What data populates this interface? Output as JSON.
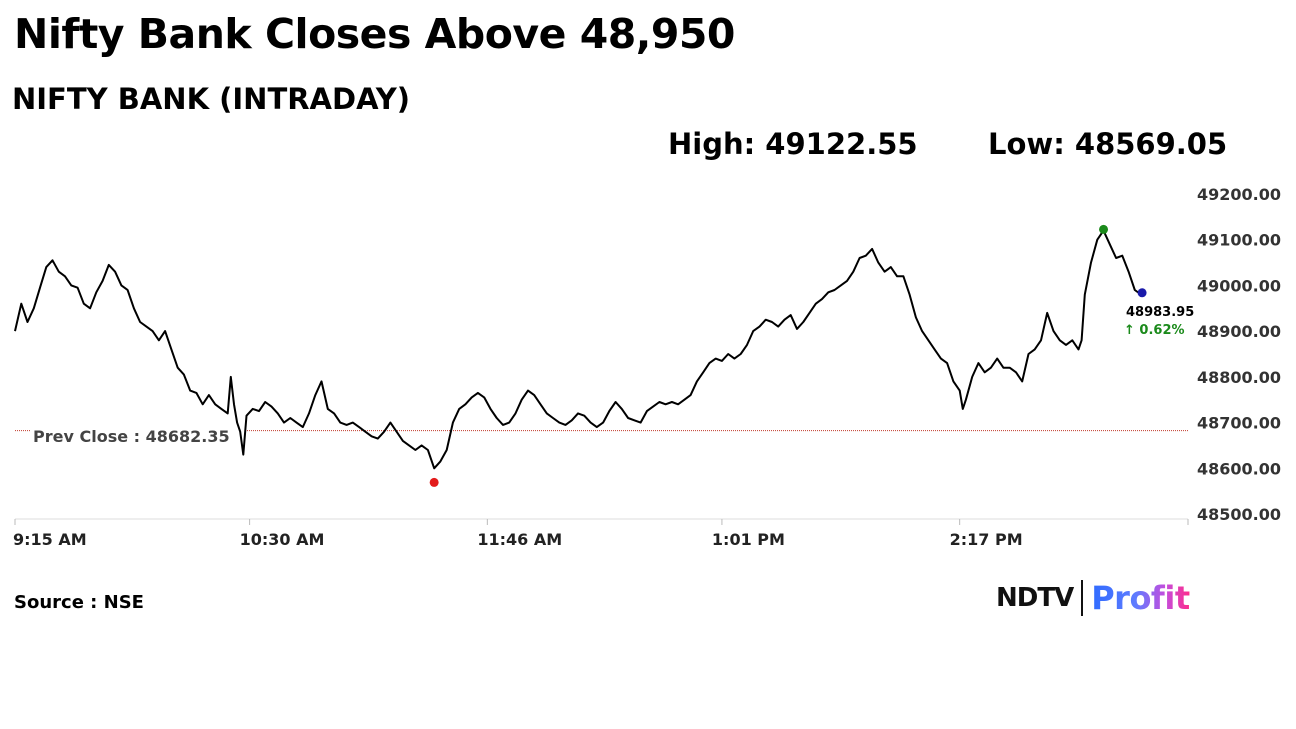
{
  "headline": "Nifty Bank Closes Above 48,950",
  "subtitle": "NIFTY BANK (INTRADAY)",
  "stats": {
    "high": "High: 49122.55",
    "low": "Low: 48569.05"
  },
  "source": "Source : NSE",
  "brand": {
    "left": "NDTV",
    "right": "Profit"
  },
  "chart_data": {
    "type": "line",
    "ylim": [
      48500,
      49200
    ],
    "y_ticks": [
      48500,
      48600,
      48700,
      48800,
      48900,
      49000,
      49100,
      49200
    ],
    "y_tick_labels": [
      "48500.00",
      "48600.00",
      "48700.00",
      "48800.00",
      "48900.00",
      "49000.00",
      "49100.00",
      "49200.00"
    ],
    "x_tick_labels": [
      "9:15 AM",
      "10:30 AM",
      "11:46 AM",
      "1:01 PM",
      "2:17 PM"
    ],
    "x_tick_minutes": [
      555,
      630,
      706,
      781,
      857
    ],
    "x_range_minutes": [
      555,
      930
    ],
    "prev_close": {
      "value": 48682.35,
      "label": "Prev Close : 48682.35"
    },
    "last": {
      "value": 48983.95,
      "label": "48983.95",
      "change_label": "↑ 0.62%"
    },
    "high_point": {
      "minute": 903,
      "value": 49122.55
    },
    "low_point": {
      "minute": 689,
      "value": 48569.05
    },
    "colors": {
      "line": "#000000",
      "prev_close": "#c0392b",
      "high_marker": "#1b8a1b",
      "low_marker": "#e31b1b",
      "last_marker": "#1a1aaa",
      "change": "#1b8a1b"
    },
    "points": [
      [
        555,
        48900
      ],
      [
        557,
        48960
      ],
      [
        559,
        48920
      ],
      [
        561,
        48950
      ],
      [
        563,
        48995
      ],
      [
        565,
        49040
      ],
      [
        567,
        49055
      ],
      [
        569,
        49030
      ],
      [
        571,
        49020
      ],
      [
        573,
        49000
      ],
      [
        575,
        48995
      ],
      [
        577,
        48960
      ],
      [
        579,
        48950
      ],
      [
        581,
        48985
      ],
      [
        583,
        49010
      ],
      [
        585,
        49045
      ],
      [
        587,
        49030
      ],
      [
        589,
        49000
      ],
      [
        591,
        48990
      ],
      [
        593,
        48950
      ],
      [
        595,
        48920
      ],
      [
        597,
        48910
      ],
      [
        599,
        48900
      ],
      [
        601,
        48880
      ],
      [
        603,
        48900
      ],
      [
        605,
        48860
      ],
      [
        607,
        48820
      ],
      [
        609,
        48805
      ],
      [
        611,
        48770
      ],
      [
        613,
        48765
      ],
      [
        615,
        48740
      ],
      [
        617,
        48760
      ],
      [
        619,
        48740
      ],
      [
        621,
        48730
      ],
      [
        623,
        48720
      ],
      [
        624,
        48800
      ],
      [
        625,
        48740
      ],
      [
        626,
        48700
      ],
      [
        627,
        48680
      ],
      [
        628,
        48630
      ],
      [
        629,
        48715
      ],
      [
        631,
        48730
      ],
      [
        633,
        48725
      ],
      [
        635,
        48745
      ],
      [
        637,
        48735
      ],
      [
        639,
        48720
      ],
      [
        641,
        48700
      ],
      [
        643,
        48710
      ],
      [
        645,
        48700
      ],
      [
        647,
        48690
      ],
      [
        649,
        48720
      ],
      [
        651,
        48760
      ],
      [
        653,
        48790
      ],
      [
        655,
        48730
      ],
      [
        657,
        48720
      ],
      [
        659,
        48700
      ],
      [
        661,
        48695
      ],
      [
        663,
        48700
      ],
      [
        665,
        48690
      ],
      [
        667,
        48680
      ],
      [
        669,
        48670
      ],
      [
        671,
        48665
      ],
      [
        673,
        48680
      ],
      [
        675,
        48700
      ],
      [
        677,
        48680
      ],
      [
        679,
        48660
      ],
      [
        681,
        48650
      ],
      [
        683,
        48640
      ],
      [
        685,
        48650
      ],
      [
        687,
        48640
      ],
      [
        689,
        48600
      ],
      [
        691,
        48615
      ],
      [
        693,
        48640
      ],
      [
        695,
        48700
      ],
      [
        697,
        48730
      ],
      [
        699,
        48740
      ],
      [
        701,
        48755
      ],
      [
        703,
        48765
      ],
      [
        705,
        48755
      ],
      [
        707,
        48730
      ],
      [
        709,
        48710
      ],
      [
        711,
        48695
      ],
      [
        713,
        48700
      ],
      [
        715,
        48720
      ],
      [
        717,
        48750
      ],
      [
        719,
        48770
      ],
      [
        721,
        48760
      ],
      [
        723,
        48740
      ],
      [
        725,
        48720
      ],
      [
        727,
        48710
      ],
      [
        729,
        48700
      ],
      [
        731,
        48695
      ],
      [
        733,
        48705
      ],
      [
        735,
        48720
      ],
      [
        737,
        48715
      ],
      [
        739,
        48700
      ],
      [
        741,
        48690
      ],
      [
        743,
        48700
      ],
      [
        745,
        48725
      ],
      [
        747,
        48745
      ],
      [
        749,
        48730
      ],
      [
        751,
        48710
      ],
      [
        753,
        48705
      ],
      [
        755,
        48700
      ],
      [
        757,
        48725
      ],
      [
        759,
        48735
      ],
      [
        761,
        48745
      ],
      [
        763,
        48740
      ],
      [
        765,
        48745
      ],
      [
        767,
        48740
      ],
      [
        769,
        48750
      ],
      [
        771,
        48760
      ],
      [
        773,
        48790
      ],
      [
        775,
        48810
      ],
      [
        777,
        48830
      ],
      [
        779,
        48840
      ],
      [
        781,
        48835
      ],
      [
        783,
        48850
      ],
      [
        785,
        48840
      ],
      [
        787,
        48850
      ],
      [
        789,
        48870
      ],
      [
        791,
        48900
      ],
      [
        793,
        48910
      ],
      [
        795,
        48925
      ],
      [
        797,
        48920
      ],
      [
        799,
        48910
      ],
      [
        801,
        48925
      ],
      [
        803,
        48935
      ],
      [
        805,
        48905
      ],
      [
        807,
        48920
      ],
      [
        809,
        48940
      ],
      [
        811,
        48960
      ],
      [
        813,
        48970
      ],
      [
        815,
        48985
      ],
      [
        817,
        48990
      ],
      [
        819,
        49000
      ],
      [
        821,
        49010
      ],
      [
        823,
        49030
      ],
      [
        825,
        49060
      ],
      [
        827,
        49065
      ],
      [
        829,
        49080
      ],
      [
        831,
        49050
      ],
      [
        833,
        49030
      ],
      [
        835,
        49040
      ],
      [
        837,
        49020
      ],
      [
        839,
        49020
      ],
      [
        841,
        48980
      ],
      [
        843,
        48930
      ],
      [
        845,
        48900
      ],
      [
        847,
        48880
      ],
      [
        849,
        48860
      ],
      [
        851,
        48840
      ],
      [
        853,
        48830
      ],
      [
        855,
        48790
      ],
      [
        857,
        48770
      ],
      [
        858,
        48730
      ],
      [
        859,
        48750
      ],
      [
        861,
        48800
      ],
      [
        863,
        48830
      ],
      [
        865,
        48810
      ],
      [
        867,
        48820
      ],
      [
        869,
        48840
      ],
      [
        871,
        48820
      ],
      [
        873,
        48820
      ],
      [
        875,
        48810
      ],
      [
        877,
        48790
      ],
      [
        879,
        48850
      ],
      [
        881,
        48860
      ],
      [
        883,
        48880
      ],
      [
        885,
        48940
      ],
      [
        887,
        48900
      ],
      [
        889,
        48880
      ],
      [
        891,
        48870
      ],
      [
        893,
        48880
      ],
      [
        895,
        48860
      ],
      [
        896,
        48880
      ],
      [
        897,
        48980
      ],
      [
        899,
        49050
      ],
      [
        901,
        49100
      ],
      [
        903,
        49120
      ],
      [
        905,
        49090
      ],
      [
        907,
        49060
      ],
      [
        909,
        49065
      ],
      [
        911,
        49030
      ],
      [
        913,
        48990
      ],
      [
        915,
        48980
      ]
    ]
  }
}
